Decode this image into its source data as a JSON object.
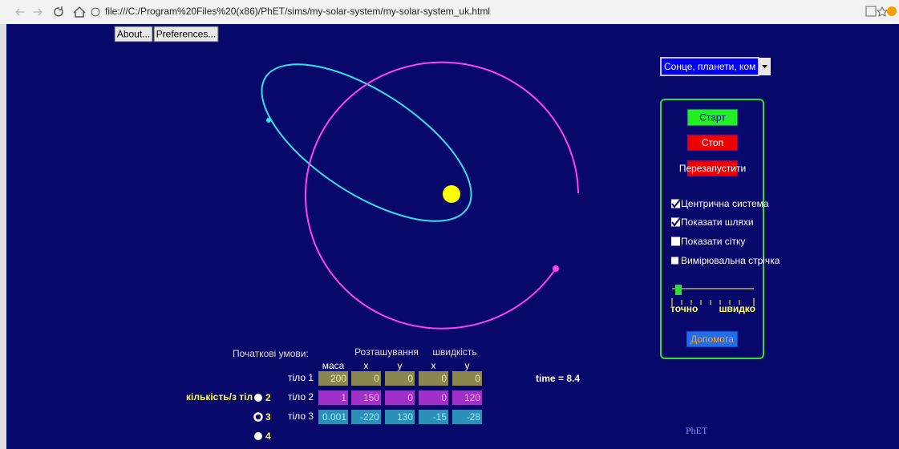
{
  "browser": {
    "url": "file:///C:/Program%20Files%20(x86)/PhET/sims/my-solar-system/my-solar-system_uk.html"
  },
  "menu": [
    "About...",
    "Preferences..."
  ],
  "controls": {
    "dropdown": "Сонце, планети, ком",
    "start": "Старт",
    "stop": "Стоп",
    "reset": "Перезапустити",
    "checkboxes": [
      {
        "label": "Центрична система",
        "checked": true
      },
      {
        "label": "Показати шляхи",
        "checked": true
      },
      {
        "label": "Показати сітку",
        "checked": false
      },
      {
        "label": "Вимірювальна стрічка",
        "checked": false
      }
    ],
    "slider": {
      "min_label": "точно",
      "max_label": "швидко"
    },
    "help": "Допомога"
  },
  "initial_conditions": {
    "title": "Початкові умови:",
    "position": "Розташування",
    "velocity": "швидкість",
    "columns": [
      "маса",
      "x",
      "y",
      "x",
      "y"
    ],
    "rows": [
      {
        "label": "тіло 1",
        "values": [
          200,
          0,
          0,
          0,
          0
        ]
      },
      {
        "label": "тіло 2",
        "values": [
          1,
          150,
          0,
          0,
          120
        ]
      },
      {
        "label": "тіло 3",
        "values": [
          0.001,
          -220,
          130,
          -15,
          -28
        ]
      }
    ],
    "body_count_label": "кількість/з тіл",
    "body_count_options": [
      2,
      3,
      4
    ],
    "body_count_selected": 3
  },
  "time": "time = 8.4",
  "logo": "PhET"
}
